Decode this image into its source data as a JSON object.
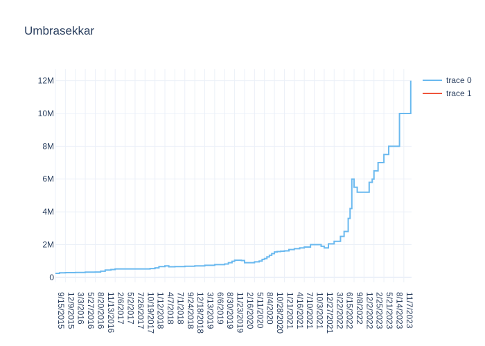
{
  "chart_data": {
    "type": "line",
    "line_shape": "step",
    "title": "Umbrasekkar",
    "xlabel": "",
    "ylabel": "",
    "grid": true,
    "legend_placement": "top-right",
    "ylim": [
      -300000,
      12700000
    ],
    "y_ticks": [
      0,
      2000000,
      4000000,
      6000000,
      8000000,
      10000000,
      12000000
    ],
    "y_tick_labels": [
      "0",
      "2M",
      "4M",
      "6M",
      "8M",
      "10M",
      "12M"
    ],
    "x_tick_labels": [
      "9/15/2015",
      "12/9/2015",
      "3/3/2016",
      "5/27/2016",
      "8/20/2016",
      "11/13/2016",
      "2/6/2017",
      "5/2/2017",
      "7/26/2017",
      "10/19/2017",
      "1/12/2018",
      "4/7/2018",
      "7/1/2018",
      "9/24/2018",
      "12/18/2018",
      "3/13/2019",
      "6/6/2019",
      "8/30/2019",
      "11/23/2019",
      "2/16/2020",
      "5/11/2020",
      "8/4/2020",
      "10/28/2020",
      "1/21/2021",
      "4/16/2021",
      "7/10/2021",
      "10/3/2021",
      "12/27/2021",
      "3/22/2022",
      "6/15/2022",
      "9/8/2022",
      "12/2/2022",
      "2/25/2023",
      "5/21/2023",
      "8/14/2023",
      "11/7/2023"
    ],
    "series": [
      {
        "name": "trace 0",
        "color": "#6ab9ef",
        "x": [
          "2015-09-15",
          "2015-10-20",
          "2015-12-09",
          "2016-03-03",
          "2016-05-27",
          "2016-08-20",
          "2016-10-05",
          "2016-11-13",
          "2017-01-01",
          "2017-02-06",
          "2017-05-02",
          "2017-07-26",
          "2017-10-19",
          "2017-12-01",
          "2018-01-12",
          "2018-02-15",
          "2018-04-07",
          "2018-05-10",
          "2018-07-01",
          "2018-09-24",
          "2018-12-18",
          "2019-03-13",
          "2019-06-06",
          "2019-08-30",
          "2019-10-01",
          "2019-11-01",
          "2019-11-23",
          "2020-01-20",
          "2020-02-16",
          "2020-05-11",
          "2020-06-20",
          "2020-07-15",
          "2020-08-04",
          "2020-08-25",
          "2020-09-15",
          "2020-10-05",
          "2020-10-28",
          "2020-11-20",
          "2020-12-20",
          "2021-01-21",
          "2021-03-01",
          "2021-04-16",
          "2021-06-01",
          "2021-07-10",
          "2021-09-01",
          "2021-10-03",
          "2021-12-01",
          "2021-12-27",
          "2022-02-01",
          "2022-03-22",
          "2022-05-15",
          "2022-06-15",
          "2022-07-20",
          "2022-08-05",
          "2022-08-20",
          "2022-09-08",
          "2022-10-05",
          "2022-10-20",
          "2022-12-02",
          "2023-01-15",
          "2023-02-10",
          "2023-02-25",
          "2023-04-01",
          "2023-05-21",
          "2023-07-01",
          "2023-08-14",
          "2023-10-01",
          "2023-11-07",
          "2023-12-15",
          "2024-01-05"
        ],
        "values": [
          250000,
          280000,
          290000,
          300000,
          320000,
          330000,
          380000,
          450000,
          480000,
          520000,
          520000,
          520000,
          520000,
          540000,
          580000,
          660000,
          700000,
          650000,
          660000,
          680000,
          700000,
          740000,
          780000,
          820000,
          900000,
          980000,
          1050000,
          1030000,
          900000,
          950000,
          1000000,
          1100000,
          1150000,
          1250000,
          1350000,
          1450000,
          1550000,
          1580000,
          1600000,
          1620000,
          1700000,
          1750000,
          1800000,
          1850000,
          2000000,
          2000000,
          1900000,
          1800000,
          2050000,
          2200000,
          2500000,
          2800000,
          3600000,
          4200000,
          6000000,
          5500000,
          5200000,
          5200000,
          5200000,
          5800000,
          6000000,
          6500000,
          7000000,
          7500000,
          8000000,
          8000000,
          10000000,
          10000000,
          10000000,
          12000000
        ]
      },
      {
        "name": "trace 1",
        "color": "#ef553b",
        "x": [],
        "values": []
      }
    ]
  }
}
